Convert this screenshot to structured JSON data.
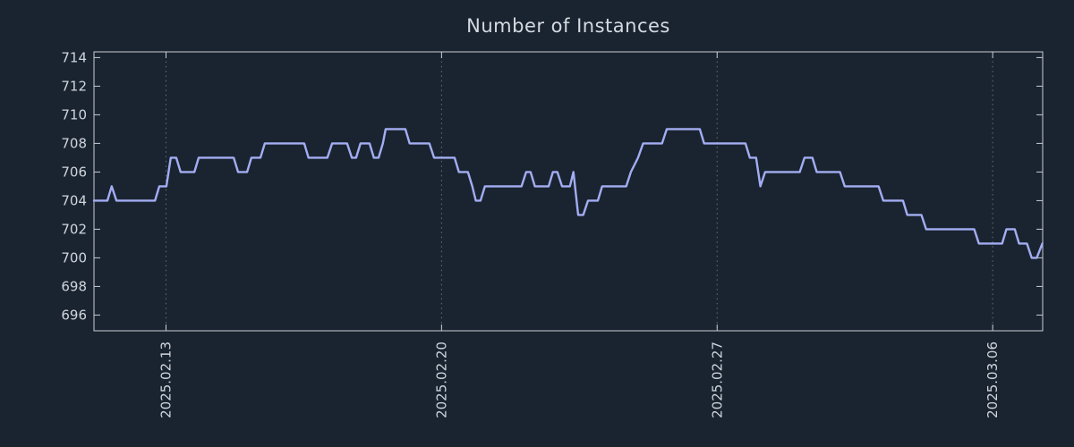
{
  "colors": {
    "background": "#1a2430",
    "frame": "#c9ced6",
    "grid": "#9aa1ac",
    "text": "#d0d5dd",
    "line": "#a3adf3"
  },
  "chart_data": {
    "type": "line",
    "title": "Number of Instances",
    "xlabel": "",
    "ylabel": "",
    "legend": "none",
    "grid": "vertical-dotted",
    "x_unit": "days since 2025.02.11 ~04:00",
    "xlim": [
      0,
      24.1
    ],
    "ylim": [
      694.9,
      714.4
    ],
    "y_ticks": [
      696,
      698,
      700,
      702,
      704,
      706,
      708,
      710,
      712,
      714
    ],
    "x_ticks": [
      {
        "t": 1.83,
        "label": "2025.02.13"
      },
      {
        "t": 8.83,
        "label": "2025.02.20"
      },
      {
        "t": 15.83,
        "label": "2025.02.27"
      },
      {
        "t": 22.83,
        "label": "2025.03.06"
      }
    ],
    "series": [
      {
        "name": "instances",
        "points": [
          [
            0.0,
            704
          ],
          [
            0.34,
            704
          ],
          [
            0.45,
            705
          ],
          [
            0.57,
            704
          ],
          [
            1.55,
            704
          ],
          [
            1.66,
            705
          ],
          [
            1.84,
            705
          ],
          [
            1.95,
            707
          ],
          [
            2.09,
            707
          ],
          [
            2.2,
            706
          ],
          [
            2.55,
            706
          ],
          [
            2.66,
            707
          ],
          [
            3.55,
            707
          ],
          [
            3.66,
            706
          ],
          [
            3.89,
            706
          ],
          [
            4.0,
            707
          ],
          [
            4.23,
            707
          ],
          [
            4.34,
            708
          ],
          [
            5.34,
            708
          ],
          [
            5.45,
            707
          ],
          [
            5.93,
            707
          ],
          [
            6.05,
            708
          ],
          [
            6.43,
            708
          ],
          [
            6.55,
            707
          ],
          [
            6.66,
            707
          ],
          [
            6.77,
            708
          ],
          [
            7.0,
            708
          ],
          [
            7.11,
            707
          ],
          [
            7.23,
            707
          ],
          [
            7.34,
            708
          ],
          [
            7.41,
            709
          ],
          [
            7.91,
            709
          ],
          [
            8.02,
            708
          ],
          [
            8.52,
            708
          ],
          [
            8.64,
            707
          ],
          [
            9.16,
            707
          ],
          [
            9.27,
            706
          ],
          [
            9.5,
            706
          ],
          [
            9.61,
            705
          ],
          [
            9.7,
            704
          ],
          [
            9.82,
            704
          ],
          [
            9.93,
            705
          ],
          [
            10.86,
            705
          ],
          [
            10.98,
            706
          ],
          [
            11.09,
            706
          ],
          [
            11.2,
            705
          ],
          [
            11.55,
            705
          ],
          [
            11.66,
            706
          ],
          [
            11.77,
            706
          ],
          [
            11.89,
            705
          ],
          [
            12.09,
            705
          ],
          [
            12.18,
            706
          ],
          [
            12.3,
            703
          ],
          [
            12.43,
            703
          ],
          [
            12.55,
            704
          ],
          [
            12.8,
            704
          ],
          [
            12.91,
            705
          ],
          [
            13.52,
            705
          ],
          [
            13.64,
            706
          ],
          [
            13.82,
            707
          ],
          [
            13.95,
            708
          ],
          [
            14.43,
            708
          ],
          [
            14.55,
            709
          ],
          [
            15.39,
            709
          ],
          [
            15.5,
            708
          ],
          [
            16.55,
            708
          ],
          [
            16.66,
            707
          ],
          [
            16.82,
            707
          ],
          [
            16.93,
            705
          ],
          [
            17.05,
            706
          ],
          [
            17.93,
            706
          ],
          [
            18.05,
            707
          ],
          [
            18.25,
            707
          ],
          [
            18.36,
            706
          ],
          [
            18.95,
            706
          ],
          [
            19.07,
            705
          ],
          [
            19.93,
            705
          ],
          [
            20.05,
            704
          ],
          [
            20.55,
            704
          ],
          [
            20.66,
            703
          ],
          [
            21.02,
            703
          ],
          [
            21.14,
            702
          ],
          [
            22.36,
            702
          ],
          [
            22.48,
            701
          ],
          [
            23.07,
            701
          ],
          [
            23.18,
            702
          ],
          [
            23.39,
            702
          ],
          [
            23.5,
            701
          ],
          [
            23.7,
            701
          ],
          [
            23.82,
            700
          ],
          [
            23.95,
            700
          ],
          [
            24.09,
            701
          ]
        ]
      }
    ]
  }
}
